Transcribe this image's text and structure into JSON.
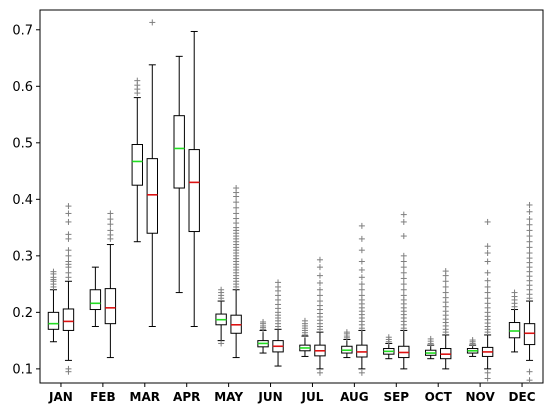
{
  "chart_data": {
    "type": "box",
    "title": "",
    "xlabel": "",
    "ylabel": "",
    "ylim": [
      0.075,
      0.735
    ],
    "yticks": [
      "0.1",
      "0.2",
      "0.3",
      "0.4",
      "0.5",
      "0.6",
      "0.7"
    ],
    "grid": false,
    "legend": "none",
    "colors": {
      "box": "#000000",
      "whisker": "#000000",
      "outlier": "#7f7f7f",
      "median_green": "#22dd22",
      "median_red": "#dd1111"
    },
    "categories": [
      "JAN",
      "FEB",
      "MAR",
      "APR",
      "MAY",
      "JUN",
      "JUL",
      "AUG",
      "SEP",
      "OCT",
      "NOV",
      "DEC"
    ],
    "series": [
      {
        "median_color": "green",
        "boxes": [
          {
            "month": "JAN",
            "whislo": 0.148,
            "q1": 0.17,
            "med": 0.18,
            "q3": 0.2,
            "whishi": 0.24,
            "fliers": [
              0.245,
              0.25,
              0.255,
              0.258,
              0.262,
              0.268,
              0.272
            ]
          },
          {
            "month": "FEB",
            "whislo": 0.175,
            "q1": 0.205,
            "med": 0.216,
            "q3": 0.24,
            "whishi": 0.28,
            "fliers": []
          },
          {
            "month": "MAR",
            "whislo": 0.325,
            "q1": 0.425,
            "med": 0.467,
            "q3": 0.497,
            "whishi": 0.58,
            "fliers": [
              0.588,
              0.595,
              0.602,
              0.61
            ]
          },
          {
            "month": "APR",
            "whislo": 0.235,
            "q1": 0.42,
            "med": 0.49,
            "q3": 0.548,
            "whishi": 0.653,
            "fliers": []
          },
          {
            "month": "MAY",
            "whislo": 0.15,
            "q1": 0.178,
            "med": 0.187,
            "q3": 0.197,
            "whishi": 0.22,
            "fliers": [
              0.225,
              0.23,
              0.235,
              0.24,
              0.145
            ]
          },
          {
            "month": "JUN",
            "whislo": 0.128,
            "q1": 0.139,
            "med": 0.145,
            "q3": 0.15,
            "whishi": 0.168,
            "fliers": [
              0.17,
              0.173,
              0.176,
              0.18,
              0.183
            ]
          },
          {
            "month": "JUL",
            "whislo": 0.122,
            "q1": 0.132,
            "med": 0.137,
            "q3": 0.142,
            "whishi": 0.158,
            "fliers": [
              0.16,
              0.164,
              0.168,
              0.172,
              0.176,
              0.18,
              0.185
            ]
          },
          {
            "month": "AUG",
            "whislo": 0.12,
            "q1": 0.128,
            "med": 0.133,
            "q3": 0.14,
            "whishi": 0.152,
            "fliers": [
              0.155,
              0.158,
              0.162,
              0.165
            ]
          },
          {
            "month": "SEP",
            "whislo": 0.118,
            "q1": 0.126,
            "med": 0.131,
            "q3": 0.136,
            "whishi": 0.145,
            "fliers": [
              0.148,
              0.152,
              0.156
            ]
          },
          {
            "month": "OCT",
            "whislo": 0.118,
            "q1": 0.124,
            "med": 0.128,
            "q3": 0.133,
            "whishi": 0.142,
            "fliers": [
              0.145,
              0.149,
              0.153
            ]
          },
          {
            "month": "NOV",
            "whislo": 0.122,
            "q1": 0.128,
            "med": 0.132,
            "q3": 0.136,
            "whishi": 0.142,
            "fliers": [
              0.145,
              0.148,
              0.151
            ]
          },
          {
            "month": "DEC",
            "whislo": 0.13,
            "q1": 0.155,
            "med": 0.167,
            "q3": 0.182,
            "whishi": 0.205,
            "fliers": [
              0.21,
              0.216,
              0.222,
              0.228,
              0.235
            ]
          }
        ]
      },
      {
        "median_color": "red",
        "boxes": [
          {
            "month": "JAN",
            "whislo": 0.115,
            "q1": 0.168,
            "med": 0.184,
            "q3": 0.206,
            "whishi": 0.255,
            "fliers": [
              0.095,
              0.1,
              0.262,
              0.27,
              0.28,
              0.285,
              0.29,
              0.3,
              0.31,
              0.33,
              0.338,
              0.36,
              0.375,
              0.388
            ]
          },
          {
            "month": "FEB",
            "whislo": 0.12,
            "q1": 0.18,
            "med": 0.208,
            "q3": 0.242,
            "whishi": 0.32,
            "fliers": [
              0.33,
              0.337,
              0.345,
              0.356,
              0.365,
              0.375
            ]
          },
          {
            "month": "MAR",
            "whislo": 0.175,
            "q1": 0.34,
            "med": 0.408,
            "q3": 0.472,
            "whishi": 0.638,
            "fliers": [
              0.713
            ]
          },
          {
            "month": "APR",
            "whislo": 0.175,
            "q1": 0.343,
            "med": 0.43,
            "q3": 0.488,
            "whishi": 0.697,
            "fliers": []
          },
          {
            "month": "MAY",
            "whislo": 0.12,
            "q1": 0.163,
            "med": 0.178,
            "q3": 0.195,
            "whishi": 0.24,
            "fliers": [
              0.245,
              0.25,
              0.255,
              0.26,
              0.265,
              0.27,
              0.275,
              0.28,
              0.285,
              0.29,
              0.295,
              0.3,
              0.305,
              0.31,
              0.315,
              0.32,
              0.325,
              0.33,
              0.335,
              0.34,
              0.345,
              0.35,
              0.358,
              0.366,
              0.375,
              0.385,
              0.395,
              0.405,
              0.412,
              0.42
            ]
          },
          {
            "month": "JUN",
            "whislo": 0.105,
            "q1": 0.13,
            "med": 0.14,
            "q3": 0.15,
            "whishi": 0.17,
            "fliers": [
              0.175,
              0.18,
              0.185,
              0.19,
              0.195,
              0.2,
              0.207,
              0.214,
              0.222,
              0.23,
              0.238,
              0.245,
              0.253
            ]
          },
          {
            "month": "JUL",
            "whislo": 0.1,
            "q1": 0.123,
            "med": 0.132,
            "q3": 0.142,
            "whishi": 0.165,
            "fliers": [
              0.093,
              0.17,
              0.175,
              0.18,
              0.186,
              0.192,
              0.198,
              0.205,
              0.212,
              0.22,
              0.23,
              0.24,
              0.252,
              0.265,
              0.28,
              0.293
            ]
          },
          {
            "month": "AUG",
            "whislo": 0.1,
            "q1": 0.121,
            "med": 0.13,
            "q3": 0.142,
            "whishi": 0.168,
            "fliers": [
              0.093,
              0.172,
              0.178,
              0.184,
              0.19,
              0.196,
              0.202,
              0.208,
              0.215,
              0.222,
              0.23,
              0.24,
              0.25,
              0.262,
              0.275,
              0.29,
              0.31,
              0.33,
              0.353
            ]
          },
          {
            "month": "SEP",
            "whislo": 0.1,
            "q1": 0.12,
            "med": 0.129,
            "q3": 0.14,
            "whishi": 0.168,
            "fliers": [
              0.172,
              0.178,
              0.184,
              0.19,
              0.196,
              0.202,
              0.208,
              0.215,
              0.222,
              0.23,
              0.24,
              0.25,
              0.26,
              0.27,
              0.28,
              0.29,
              0.3,
              0.335,
              0.36,
              0.373
            ]
          },
          {
            "month": "OCT",
            "whislo": 0.1,
            "q1": 0.118,
            "med": 0.126,
            "q3": 0.136,
            "whishi": 0.16,
            "fliers": [
              0.165,
              0.17,
              0.176,
              0.182,
              0.188,
              0.195,
              0.202,
              0.21,
              0.218,
              0.226,
              0.235,
              0.245,
              0.255,
              0.265,
              0.273
            ]
          },
          {
            "month": "NOV",
            "whislo": 0.1,
            "q1": 0.122,
            "med": 0.13,
            "q3": 0.138,
            "whishi": 0.16,
            "fliers": [
              0.083,
              0.093,
              0.165,
              0.17,
              0.175,
              0.181,
              0.187,
              0.193,
              0.2,
              0.208,
              0.216,
              0.225,
              0.235,
              0.245,
              0.256,
              0.27,
              0.29,
              0.305,
              0.317,
              0.36
            ]
          },
          {
            "month": "DEC",
            "whislo": 0.115,
            "q1": 0.143,
            "med": 0.163,
            "q3": 0.18,
            "whishi": 0.22,
            "fliers": [
              0.08,
              0.095,
              0.225,
              0.232,
              0.24,
              0.248,
              0.256,
              0.264,
              0.272,
              0.28,
              0.288,
              0.296,
              0.305,
              0.315,
              0.325,
              0.335,
              0.345,
              0.355,
              0.365,
              0.378,
              0.39
            ]
          }
        ]
      }
    ]
  }
}
